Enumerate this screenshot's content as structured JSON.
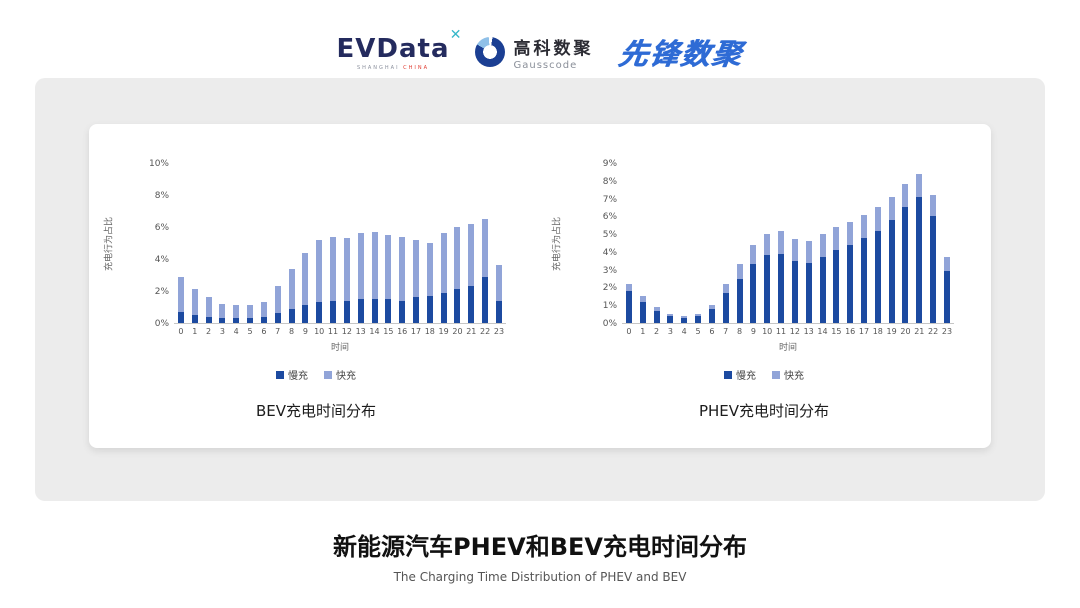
{
  "header": {
    "evdata": {
      "name": "EVData",
      "mark": "✕",
      "sub_left": "SHANGHAI",
      "sub_right": "CHINA"
    },
    "gausscode": {
      "name_cn": "高科数聚",
      "name_en": "Gausscode"
    },
    "pioneer": {
      "name": "先锋数聚"
    }
  },
  "colors": {
    "slow": "#1c4aa0",
    "fast": "#91a4d8"
  },
  "chart_data": [
    {
      "type": "bar",
      "stacked": true,
      "title": "BEV充电时间分布",
      "ylabel": "充电行为占比",
      "xlabel": "时间",
      "ylim": [
        0,
        10
      ],
      "ytick_step": 2,
      "ytick_suffix": "%",
      "legend_position": "bottom",
      "grid": false,
      "categories": [
        0,
        1,
        2,
        3,
        4,
        5,
        6,
        7,
        8,
        9,
        10,
        11,
        12,
        13,
        14,
        15,
        16,
        17,
        18,
        19,
        20,
        21,
        22,
        23
      ],
      "series": [
        {
          "name": "慢充",
          "values": [
            0.7,
            0.5,
            0.4,
            0.3,
            0.3,
            0.3,
            0.4,
            0.6,
            0.9,
            1.1,
            1.3,
            1.4,
            1.4,
            1.5,
            1.5,
            1.5,
            1.4,
            1.6,
            1.7,
            1.9,
            2.1,
            2.3,
            2.9,
            1.4
          ]
        },
        {
          "name": "快充",
          "values": [
            2.2,
            1.6,
            1.2,
            0.9,
            0.8,
            0.8,
            0.9,
            1.7,
            2.5,
            3.3,
            3.9,
            4.0,
            3.9,
            4.1,
            4.2,
            4.0,
            4.0,
            3.6,
            3.3,
            3.7,
            3.9,
            3.9,
            3.6,
            2.2
          ]
        }
      ]
    },
    {
      "type": "bar",
      "stacked": true,
      "title": "PHEV充电时间分布",
      "ylabel": "充电行为占比",
      "xlabel": "时间",
      "ylim": [
        0,
        9
      ],
      "ytick_step": 1,
      "ytick_suffix": "%",
      "legend_position": "bottom",
      "grid": false,
      "categories": [
        0,
        1,
        2,
        3,
        4,
        5,
        6,
        7,
        8,
        9,
        10,
        11,
        12,
        13,
        14,
        15,
        16,
        17,
        18,
        19,
        20,
        21,
        22,
        23
      ],
      "series": [
        {
          "name": "慢充",
          "values": [
            1.8,
            1.2,
            0.7,
            0.4,
            0.3,
            0.4,
            0.8,
            1.7,
            2.5,
            3.3,
            3.8,
            3.9,
            3.5,
            3.4,
            3.7,
            4.1,
            4.4,
            4.8,
            5.2,
            5.8,
            6.5,
            7.1,
            6.0,
            2.9
          ]
        },
        {
          "name": "快充",
          "values": [
            0.4,
            0.3,
            0.2,
            0.1,
            0.1,
            0.1,
            0.2,
            0.5,
            0.8,
            1.1,
            1.2,
            1.3,
            1.2,
            1.2,
            1.3,
            1.3,
            1.3,
            1.3,
            1.3,
            1.3,
            1.3,
            1.3,
            1.2,
            0.8
          ]
        }
      ]
    }
  ],
  "footer": {
    "title": "新能源汽车PHEV和BEV充电时间分布",
    "subtitle": "The Charging Time Distribution of PHEV and BEV"
  }
}
